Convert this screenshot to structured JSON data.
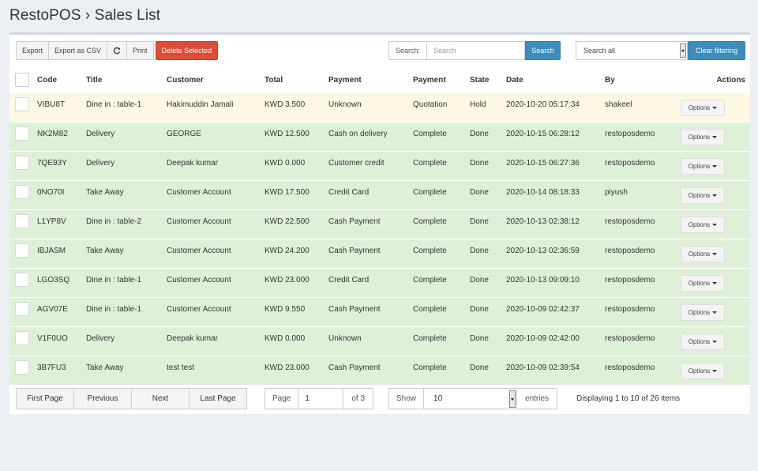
{
  "page": {
    "title": "RestoPOS › Sales List"
  },
  "toolbar": {
    "export": "Export",
    "export_csv": "Export as CSV",
    "refresh_icon": "refresh-icon",
    "print": "Print",
    "delete_selected": "Delete Selected",
    "search_label": "Search:",
    "search_placeholder": "Search",
    "search_button": "Search",
    "filter_select": "Search all",
    "clear_filtering": "Clear filtering"
  },
  "columns": {
    "code": "Code",
    "title": "Title",
    "customer": "Customer",
    "total": "Total",
    "payment": "Payment",
    "payment_status": "Payment",
    "state": "State",
    "date": "Date",
    "by": "By",
    "actions": "Actions"
  },
  "rows": [
    {
      "code": "VIBU8T",
      "title": "Dine in : table-1",
      "customer": "Hakimuddin Jamali",
      "total": "KWD 3.500",
      "payment": "Unknown",
      "payment_status": "Quotation",
      "state": "Hold",
      "date": "2020-10-20 05:17:34",
      "by": "shakeel",
      "action": "Options"
    },
    {
      "code": "NK2M82",
      "title": "Delivery",
      "customer": "GEORGE",
      "total": "KWD 12.500",
      "payment": "Cash on delivery",
      "payment_status": "Complete",
      "state": "Done",
      "date": "2020-10-15 06:28:12",
      "by": "restoposdemo",
      "action": "Options"
    },
    {
      "code": "7QE93Y",
      "title": "Delivery",
      "customer": "Deepak kumar",
      "total": "KWD 0.000",
      "payment": "Customer credit",
      "payment_status": "Complete",
      "state": "Done",
      "date": "2020-10-15 06:27:36",
      "by": "restoposdemo",
      "action": "Options"
    },
    {
      "code": "0NO70I",
      "title": "Take Away",
      "customer": "Customer Account",
      "total": "KWD 17.500",
      "payment": "Credit Card",
      "payment_status": "Complete",
      "state": "Done",
      "date": "2020-10-14 08:18:33",
      "by": "piyush",
      "action": "Options"
    },
    {
      "code": "L1YP8V",
      "title": "Dine in : table-2",
      "customer": "Customer Account",
      "total": "KWD 22.500",
      "payment": "Cash Payment",
      "payment_status": "Complete",
      "state": "Done",
      "date": "2020-10-13 02:38:12",
      "by": "restoposdemo",
      "action": "Options"
    },
    {
      "code": "IBJASM",
      "title": "Take Away",
      "customer": "Customer Account",
      "total": "KWD 24.200",
      "payment": "Cash Payment",
      "payment_status": "Complete",
      "state": "Done",
      "date": "2020-10-13 02:36:59",
      "by": "restoposdemo",
      "action": "Options"
    },
    {
      "code": "LGO3SQ",
      "title": "Dine in : table-1",
      "customer": "Customer Account",
      "total": "KWD 23.000",
      "payment": "Credit Card",
      "payment_status": "Complete",
      "state": "Done",
      "date": "2020-10-13 09:09:10",
      "by": "restoposdemo",
      "action": "Options"
    },
    {
      "code": "AGV07E",
      "title": "Dine in : table-1",
      "customer": "Customer Account",
      "total": "KWD 9.550",
      "payment": "Cash Payment",
      "payment_status": "Complete",
      "state": "Done",
      "date": "2020-10-09 02:42:37",
      "by": "restoposdemo",
      "action": "Options"
    },
    {
      "code": "V1F0UO",
      "title": "Delivery",
      "customer": "Deepak kumar",
      "total": "KWD 0.000",
      "payment": "Unknown",
      "payment_status": "Complete",
      "state": "Done",
      "date": "2020-10-09 02:42:00",
      "by": "restoposdemo",
      "action": "Options"
    },
    {
      "code": "3B7FU3",
      "title": "Take Away",
      "customer": "test test",
      "total": "KWD 23.000",
      "payment": "Cash Payment",
      "payment_status": "Complete",
      "state": "Done",
      "date": "2020-10-09 02:39:54",
      "by": "restoposdemo",
      "action": "Options"
    }
  ],
  "pagination": {
    "first": "First Page",
    "previous": "Previous",
    "next": "Next",
    "last": "Last Page",
    "page_label": "Page",
    "page_value": "1",
    "of_pages": "of 3",
    "show_label": "Show",
    "show_value": "10",
    "entries_label": "entries",
    "displaying": "Displaying 1 to 10 of 26 items"
  },
  "colors": {
    "accent": "#3c8dbc",
    "danger": "#dd4b39",
    "row_done": "#dff0d8",
    "row_hold": "#fcf8e3"
  }
}
